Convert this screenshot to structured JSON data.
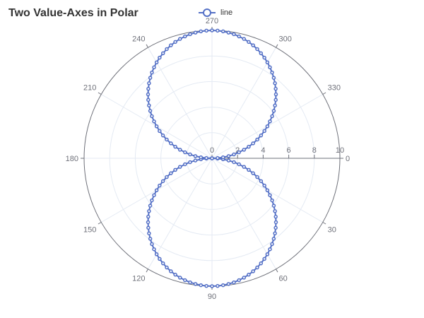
{
  "chart_data": {
    "type": "line",
    "coordinate_system": "polar",
    "title": "Two Value-Axes in Polar",
    "legend": {
      "entries": [
        "line"
      ],
      "placement": "top-center"
    },
    "angle_axis": {
      "type": "value",
      "min": 0,
      "max": 360,
      "start_angle": 0,
      "direction": "clockwise",
      "tick_labels": [
        "0",
        "30",
        "60",
        "90",
        "120",
        "150",
        "180",
        "210",
        "240",
        "270",
        "300",
        "330"
      ]
    },
    "radius_axis": {
      "type": "value",
      "min": 0,
      "max": 10,
      "tick_labels": [
        "0",
        "2",
        "4",
        "6",
        "8",
        "10"
      ]
    },
    "grid": true,
    "series": [
      {
        "name": "line",
        "color": "#5470c6",
        "symbol": "circle",
        "formula": "r = 10*sin(t) for t >= 0 (angles 0..360 step 2.5 degrees)",
        "points": [
          [
            0,
            0
          ],
          [
            2.5,
            0.44
          ],
          [
            5,
            0.87
          ],
          [
            7.5,
            1.31
          ],
          [
            10,
            1.74
          ],
          [
            12.5,
            2.16
          ],
          [
            15,
            2.59
          ],
          [
            17.5,
            3.01
          ],
          [
            20,
            3.42
          ],
          [
            22.5,
            3.83
          ],
          [
            25,
            4.23
          ],
          [
            27.5,
            4.62
          ],
          [
            30,
            5.0
          ],
          [
            32.5,
            5.37
          ],
          [
            35,
            5.74
          ],
          [
            37.5,
            6.09
          ],
          [
            40,
            6.43
          ],
          [
            42.5,
            6.76
          ],
          [
            45,
            7.07
          ],
          [
            47.5,
            7.37
          ],
          [
            50,
            7.66
          ],
          [
            52.5,
            7.93
          ],
          [
            55,
            8.19
          ],
          [
            57.5,
            8.43
          ],
          [
            60,
            8.66
          ],
          [
            62.5,
            8.87
          ],
          [
            65,
            9.06
          ],
          [
            67.5,
            9.24
          ],
          [
            70,
            9.4
          ],
          [
            72.5,
            9.54
          ],
          [
            75,
            9.66
          ],
          [
            77.5,
            9.76
          ],
          [
            80,
            9.85
          ],
          [
            82.5,
            9.91
          ],
          [
            85,
            9.96
          ],
          [
            87.5,
            9.99
          ],
          [
            90,
            10.0
          ],
          [
            92.5,
            9.99
          ],
          [
            95,
            9.96
          ],
          [
            97.5,
            9.91
          ],
          [
            100,
            9.85
          ],
          [
            102.5,
            9.76
          ],
          [
            105,
            9.66
          ],
          [
            107.5,
            9.54
          ],
          [
            110,
            9.4
          ],
          [
            112.5,
            9.24
          ],
          [
            115,
            9.06
          ],
          [
            117.5,
            8.87
          ],
          [
            120,
            8.66
          ],
          [
            122.5,
            8.43
          ],
          [
            125,
            8.19
          ],
          [
            127.5,
            7.93
          ],
          [
            130,
            7.66
          ],
          [
            132.5,
            7.37
          ],
          [
            135,
            7.07
          ],
          [
            137.5,
            6.76
          ],
          [
            140,
            6.43
          ],
          [
            142.5,
            6.09
          ],
          [
            145,
            5.74
          ],
          [
            147.5,
            5.37
          ],
          [
            150,
            5.0
          ],
          [
            152.5,
            4.62
          ],
          [
            155,
            4.23
          ],
          [
            157.5,
            3.83
          ],
          [
            160,
            3.42
          ],
          [
            162.5,
            3.01
          ],
          [
            165,
            2.59
          ],
          [
            167.5,
            2.16
          ],
          [
            170,
            1.74
          ],
          [
            172.5,
            1.31
          ],
          [
            175,
            0.87
          ],
          [
            177.5,
            0.44
          ],
          [
            180,
            0
          ],
          [
            182.5,
            0.44
          ],
          [
            185,
            0.87
          ],
          [
            187.5,
            1.31
          ],
          [
            190,
            1.74
          ],
          [
            192.5,
            2.16
          ],
          [
            195,
            2.59
          ],
          [
            197.5,
            3.01
          ],
          [
            200,
            3.42
          ],
          [
            202.5,
            3.83
          ],
          [
            205,
            4.23
          ],
          [
            207.5,
            4.62
          ],
          [
            210,
            5.0
          ],
          [
            212.5,
            5.37
          ],
          [
            215,
            5.74
          ],
          [
            217.5,
            6.09
          ],
          [
            220,
            6.43
          ],
          [
            222.5,
            6.76
          ],
          [
            225,
            7.07
          ],
          [
            227.5,
            7.37
          ],
          [
            230,
            7.66
          ],
          [
            232.5,
            7.93
          ],
          [
            235,
            8.19
          ],
          [
            237.5,
            8.43
          ],
          [
            240,
            8.66
          ],
          [
            242.5,
            8.87
          ],
          [
            245,
            9.06
          ],
          [
            247.5,
            9.24
          ],
          [
            250,
            9.4
          ],
          [
            252.5,
            9.54
          ],
          [
            255,
            9.66
          ],
          [
            257.5,
            9.76
          ],
          [
            260,
            9.85
          ],
          [
            262.5,
            9.91
          ],
          [
            265,
            9.96
          ],
          [
            267.5,
            9.99
          ],
          [
            270,
            10.0
          ],
          [
            272.5,
            9.99
          ],
          [
            275,
            9.96
          ],
          [
            277.5,
            9.91
          ],
          [
            280,
            9.85
          ],
          [
            282.5,
            9.76
          ],
          [
            285,
            9.66
          ],
          [
            287.5,
            9.54
          ],
          [
            290,
            9.4
          ],
          [
            292.5,
            9.24
          ],
          [
            295,
            9.06
          ],
          [
            297.5,
            8.87
          ],
          [
            300,
            8.66
          ],
          [
            302.5,
            8.43
          ],
          [
            305,
            8.19
          ],
          [
            307.5,
            7.93
          ],
          [
            310,
            7.66
          ],
          [
            312.5,
            7.37
          ],
          [
            315,
            7.07
          ],
          [
            317.5,
            6.76
          ],
          [
            320,
            6.43
          ],
          [
            322.5,
            6.09
          ],
          [
            325,
            5.74
          ],
          [
            327.5,
            5.37
          ],
          [
            330,
            5.0
          ],
          [
            332.5,
            4.62
          ],
          [
            335,
            4.23
          ],
          [
            337.5,
            3.83
          ],
          [
            340,
            3.42
          ],
          [
            342.5,
            3.01
          ],
          [
            345,
            2.59
          ],
          [
            347.5,
            2.16
          ],
          [
            350,
            1.74
          ],
          [
            352.5,
            1.31
          ],
          [
            355,
            0.87
          ],
          [
            357.5,
            0.44
          ],
          [
            360,
            0
          ]
        ]
      }
    ]
  }
}
